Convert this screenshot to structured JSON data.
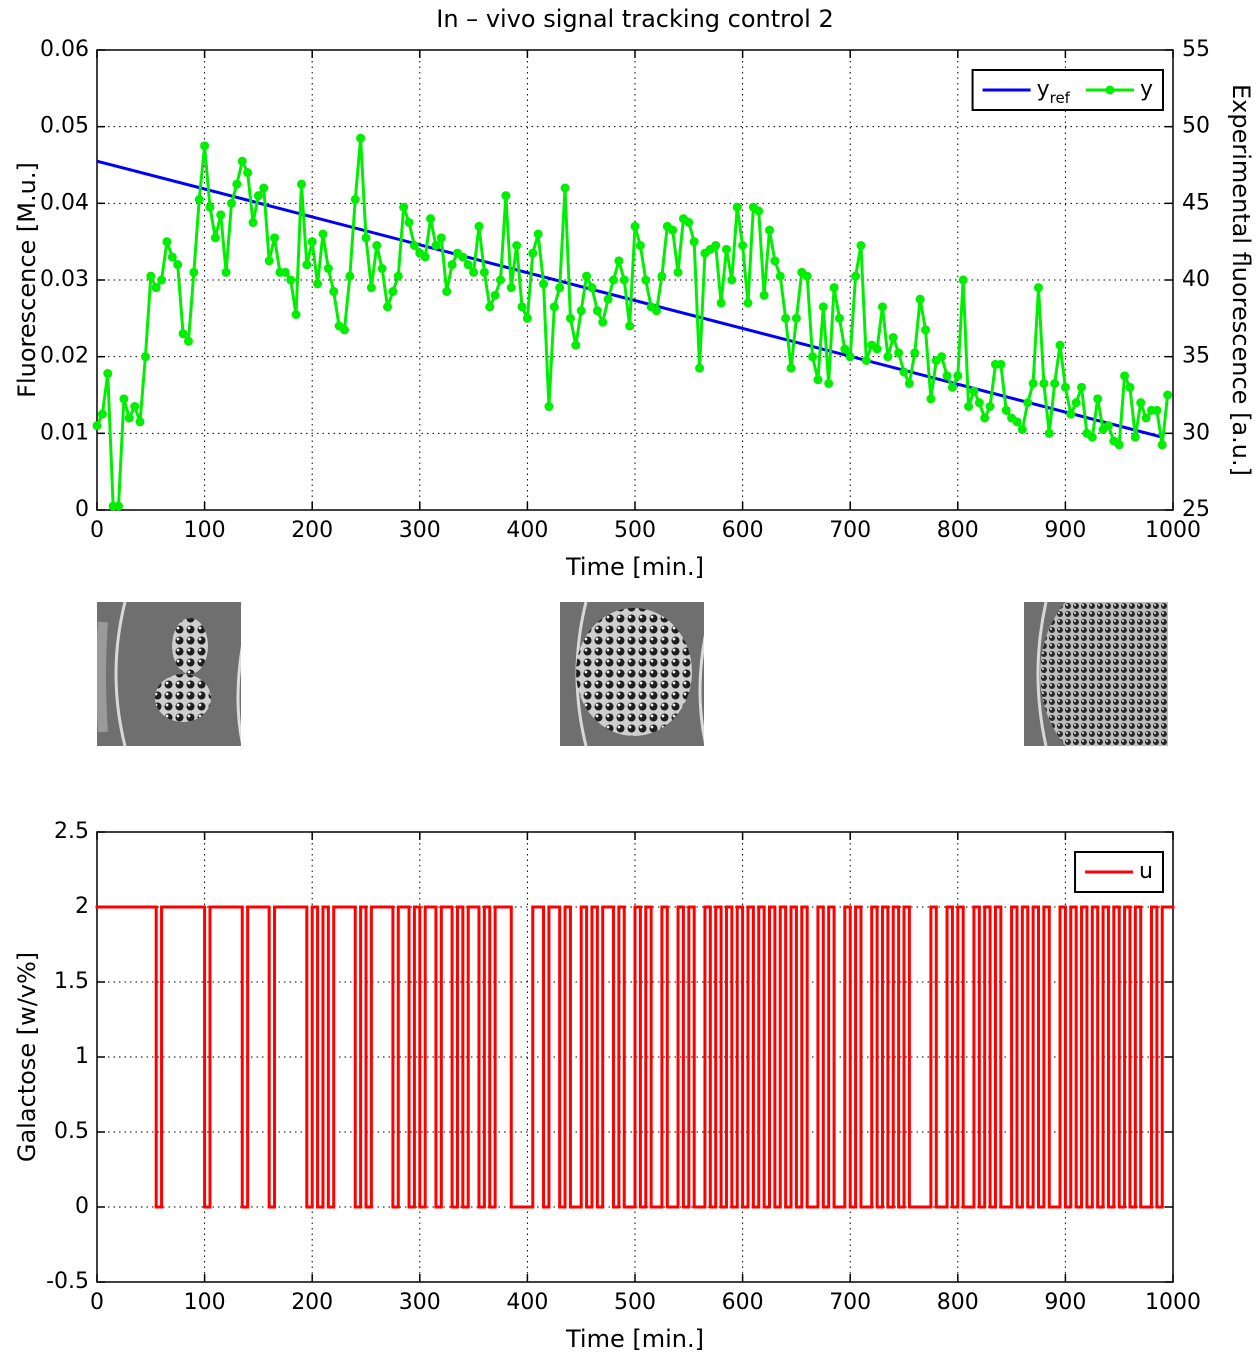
{
  "chart_data": [
    {
      "type": "line",
      "title": "In – vivo signal tracking control 2",
      "xlabel": "Time [min.]",
      "ylabel": "Fluorescence [M.u.]",
      "y2label": "Experimental fluorescence [a.u.]",
      "xlim": [
        0,
        1000
      ],
      "xticks": [
        0,
        100,
        200,
        300,
        400,
        500,
        600,
        700,
        800,
        900,
        1000
      ],
      "ylim": [
        0,
        0.06
      ],
      "yticks": [
        0,
        0.01,
        0.02,
        0.03,
        0.04,
        0.05,
        0.06
      ],
      "y2lim": [
        25,
        55
      ],
      "y2ticks": [
        25,
        30,
        35,
        40,
        45,
        50,
        55
      ],
      "grid": true,
      "legend": "upper right",
      "series": [
        {
          "name": "y",
          "name_subscript": "ref",
          "color": "#0000ff",
          "x": [
            0,
            990
          ],
          "values": [
            0.0455,
            0.0095
          ]
        },
        {
          "name": "y",
          "color": "#00ee00",
          "marker": "circle",
          "axis": "y2",
          "x": [
            0,
            5,
            10,
            15,
            20,
            25,
            30,
            35,
            40,
            45,
            50,
            55,
            60,
            65,
            70,
            75,
            80,
            85,
            90,
            95,
            100,
            105,
            110,
            115,
            120,
            125,
            130,
            135,
            140,
            145,
            150,
            155,
            160,
            165,
            170,
            175,
            180,
            185,
            190,
            195,
            200,
            205,
            210,
            215,
            220,
            225,
            230,
            235,
            240,
            245,
            250,
            255,
            260,
            265,
            270,
            275,
            280,
            285,
            290,
            295,
            300,
            305,
            310,
            315,
            320,
            325,
            330,
            335,
            340,
            345,
            350,
            355,
            360,
            365,
            370,
            375,
            380,
            385,
            390,
            395,
            400,
            405,
            410,
            415,
            420,
            425,
            430,
            435,
            440,
            445,
            450,
            455,
            460,
            465,
            470,
            475,
            480,
            485,
            490,
            495,
            500,
            505,
            510,
            515,
            520,
            525,
            530,
            535,
            540,
            545,
            550,
            555,
            560,
            565,
            570,
            575,
            580,
            585,
            590,
            595,
            600,
            605,
            610,
            615,
            620,
            625,
            630,
            635,
            640,
            645,
            650,
            655,
            660,
            665,
            670,
            675,
            680,
            685,
            690,
            695,
            700,
            705,
            710,
            715,
            720,
            725,
            730,
            735,
            740,
            745,
            750,
            755,
            760,
            765,
            770,
            775,
            780,
            785,
            790,
            795,
            800,
            805,
            810,
            815,
            820,
            825,
            830,
            835,
            840,
            845,
            850,
            855,
            860,
            865,
            870,
            875,
            880,
            885,
            890,
            895,
            900,
            905,
            910,
            915,
            920,
            925,
            930,
            935,
            940,
            945,
            950,
            955,
            960,
            965,
            970,
            975,
            980,
            985,
            990,
            995
          ],
          "values": [
            30.5,
            31.25,
            33.9,
            25.25,
            25.25,
            32.25,
            31,
            31.75,
            30.75,
            35,
            40.25,
            39.5,
            40,
            42.5,
            41.5,
            41,
            36.5,
            36,
            40.5,
            45.25,
            48.75,
            44.75,
            42.75,
            44.25,
            40.5,
            45,
            46.25,
            47.75,
            47,
            43.75,
            45.5,
            46,
            41.25,
            42.75,
            40.5,
            40.5,
            40,
            37.75,
            46.25,
            41,
            42.5,
            39.75,
            43,
            40.75,
            39.25,
            37,
            36.75,
            40.25,
            45.25,
            49.25,
            42.75,
            39.5,
            42.25,
            40.75,
            38.25,
            39.25,
            40.25,
            44.75,
            43.75,
            42.25,
            41.75,
            41.5,
            44,
            42.25,
            42.75,
            39.25,
            41,
            41.75,
            41.5,
            41,
            40.5,
            43.5,
            40.5,
            38.25,
            39,
            40,
            45.5,
            39.5,
            42.25,
            38.25,
            37.5,
            41.75,
            43,
            39.75,
            31.75,
            38.25,
            39.5,
            46,
            37.5,
            35.75,
            38,
            40.25,
            39.5,
            38,
            37.25,
            38.75,
            40,
            41.25,
            40,
            37,
            43.5,
            42.25,
            40,
            38.25,
            38,
            40.25,
            43.5,
            43.25,
            40.5,
            44,
            43.75,
            42.5,
            34.25,
            41.75,
            42,
            42.25,
            38.5,
            42,
            40,
            44.75,
            42.25,
            38.5,
            44.75,
            44.5,
            39,
            43.25,
            41.25,
            40.25,
            37.5,
            34.25,
            37.5,
            40.5,
            40.25,
            35,
            33.5,
            38.25,
            33.25,
            39.5,
            37.5,
            35.5,
            35,
            40.25,
            42.25,
            34.75,
            35.75,
            35.5,
            38.25,
            35,
            36.25,
            35.25,
            34,
            33.25,
            35.25,
            38.75,
            36.75,
            32.25,
            34.75,
            35,
            33.75,
            33,
            33.75,
            40,
            31.75,
            32.75,
            32,
            31,
            31.75,
            34.5,
            34.5,
            31.5,
            31,
            30.75,
            30.25,
            32,
            33.25,
            39.5,
            33.25,
            30,
            33.25,
            35.75,
            33,
            31.25,
            32,
            33,
            30,
            29.75,
            32.25,
            30.25,
            30.5,
            29.5,
            29.25,
            33.75,
            33,
            29.75,
            32,
            31,
            31.5,
            31.5,
            29.25,
            32.5
          ]
        }
      ]
    },
    {
      "type": "step",
      "xlabel": "Time [min.]",
      "ylabel": "Galactose [w/v%]",
      "xlim": [
        0,
        1000
      ],
      "xticks": [
        0,
        100,
        200,
        300,
        400,
        500,
        600,
        700,
        800,
        900,
        1000
      ],
      "ylim": [
        -0.5,
        2.5
      ],
      "yticks": [
        -0.5,
        0,
        0.5,
        1,
        1.5,
        2,
        2.5
      ],
      "grid": true,
      "legend": "upper right",
      "series": [
        {
          "name": "u",
          "color": "#ff0000",
          "x": [
            0,
            5,
            10,
            15,
            20,
            25,
            30,
            35,
            40,
            45,
            50,
            55,
            60,
            65,
            70,
            75,
            80,
            85,
            90,
            95,
            100,
            105,
            110,
            115,
            120,
            125,
            130,
            135,
            140,
            145,
            150,
            155,
            160,
            165,
            170,
            175,
            180,
            185,
            190,
            195,
            200,
            205,
            210,
            215,
            220,
            225,
            230,
            235,
            240,
            245,
            250,
            255,
            260,
            265,
            270,
            275,
            280,
            285,
            290,
            295,
            300,
            305,
            310,
            315,
            320,
            325,
            330,
            335,
            340,
            345,
            350,
            355,
            360,
            365,
            370,
            375,
            380,
            385,
            390,
            395,
            400,
            405,
            410,
            415,
            420,
            425,
            430,
            435,
            440,
            445,
            450,
            455,
            460,
            465,
            470,
            475,
            480,
            485,
            490,
            495,
            500,
            505,
            510,
            515,
            520,
            525,
            530,
            535,
            540,
            545,
            550,
            555,
            560,
            565,
            570,
            575,
            580,
            585,
            590,
            595,
            600,
            605,
            610,
            615,
            620,
            625,
            630,
            635,
            640,
            645,
            650,
            655,
            660,
            665,
            670,
            675,
            680,
            685,
            690,
            695,
            700,
            705,
            710,
            715,
            720,
            725,
            730,
            735,
            740,
            745,
            750,
            755,
            760,
            765,
            770,
            775,
            780,
            785,
            790,
            795,
            800,
            805,
            810,
            815,
            820,
            825,
            830,
            835,
            840,
            845,
            850,
            855,
            860,
            865,
            870,
            875,
            880,
            885,
            890,
            895,
            900,
            905,
            910,
            915,
            920,
            925,
            930,
            935,
            940,
            945,
            950,
            955,
            960,
            965,
            970,
            975,
            980,
            985,
            990,
            995
          ],
          "values": [
            2,
            2,
            2,
            2,
            2,
            2,
            2,
            2,
            2,
            2,
            2,
            0,
            2,
            2,
            2,
            2,
            2,
            2,
            2,
            2,
            0,
            2,
            2,
            2,
            2,
            2,
            2,
            0,
            2,
            2,
            2,
            2,
            0,
            2,
            2,
            2,
            2,
            2,
            2,
            0,
            2,
            0,
            2,
            0,
            2,
            2,
            2,
            2,
            0,
            2,
            0,
            2,
            2,
            2,
            2,
            0,
            2,
            2,
            0,
            2,
            0,
            2,
            2,
            0,
            2,
            2,
            0,
            2,
            0,
            2,
            2,
            0,
            2,
            0,
            2,
            2,
            2,
            0,
            0,
            0,
            0,
            2,
            2,
            0,
            2,
            2,
            0,
            2,
            0,
            0,
            2,
            0,
            2,
            0,
            2,
            2,
            0,
            2,
            0,
            0,
            2,
            0,
            2,
            0,
            0,
            2,
            0,
            0,
            2,
            0,
            2,
            0,
            0,
            2,
            0,
            2,
            0,
            2,
            0,
            2,
            0,
            2,
            0,
            2,
            0,
            2,
            0,
            2,
            0,
            2,
            0,
            2,
            0,
            0,
            2,
            0,
            2,
            0,
            0,
            2,
            0,
            2,
            0,
            0,
            2,
            0,
            2,
            0,
            2,
            0,
            2,
            0,
            0,
            0,
            0,
            2,
            0,
            0,
            2,
            0,
            2,
            0,
            0,
            2,
            0,
            2,
            0,
            2,
            0,
            0,
            2,
            0,
            2,
            0,
            2,
            0,
            2,
            0,
            0,
            2,
            0,
            2,
            0,
            2,
            0,
            2,
            0,
            2,
            0,
            2,
            0,
            2,
            0,
            2,
            0,
            0,
            2,
            0,
            2,
            2
          ]
        }
      ]
    }
  ]
}
